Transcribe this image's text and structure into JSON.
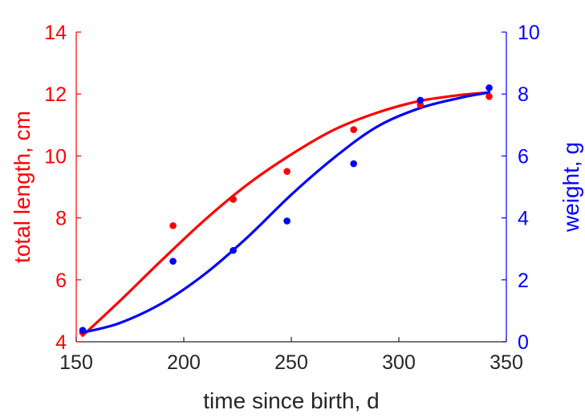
{
  "chart_data": {
    "type": "scatter",
    "xlabel": "time since birth, d",
    "ylabel_left": "total length, cm",
    "ylabel_right": "weight, g",
    "xlim": [
      150,
      350
    ],
    "ylim_left": [
      4,
      14
    ],
    "ylim_right": [
      0,
      10
    ],
    "xticks": [
      150,
      200,
      250,
      300,
      350
    ],
    "yticks_left": [
      4,
      6,
      8,
      10,
      12,
      14
    ],
    "yticks_right": [
      0,
      2,
      4,
      6,
      8,
      10
    ],
    "grid": false,
    "colors": {
      "left": "#ff0000",
      "right": "#0000ff",
      "bottom": "#262626"
    },
    "series": [
      {
        "axis": "left",
        "color": "#ff0000",
        "points": [
          [
            153,
            4.3
          ],
          [
            195,
            7.75
          ],
          [
            223,
            8.6
          ],
          [
            248,
            9.5
          ],
          [
            279,
            10.85
          ],
          [
            310,
            11.65
          ],
          [
            342,
            11.92
          ]
        ],
        "fit": [
          [
            153,
            4.2
          ],
          [
            170,
            5.3
          ],
          [
            190,
            6.65
          ],
          [
            210,
            7.95
          ],
          [
            230,
            9.1
          ],
          [
            250,
            10.05
          ],
          [
            270,
            10.85
          ],
          [
            290,
            11.4
          ],
          [
            310,
            11.78
          ],
          [
            330,
            11.98
          ],
          [
            342,
            12.05
          ]
        ]
      },
      {
        "axis": "right",
        "color": "#0000ff",
        "points": [
          [
            153,
            0.37
          ],
          [
            195,
            2.6
          ],
          [
            223,
            2.95
          ],
          [
            248,
            3.9
          ],
          [
            279,
            5.75
          ],
          [
            310,
            7.8
          ],
          [
            342,
            8.2
          ]
        ],
        "fit": [
          [
            153,
            0.3
          ],
          [
            170,
            0.6
          ],
          [
            190,
            1.25
          ],
          [
            210,
            2.2
          ],
          [
            230,
            3.4
          ],
          [
            250,
            4.75
          ],
          [
            270,
            5.95
          ],
          [
            290,
            6.95
          ],
          [
            310,
            7.55
          ],
          [
            330,
            7.9
          ],
          [
            342,
            8.05
          ]
        ]
      }
    ]
  }
}
